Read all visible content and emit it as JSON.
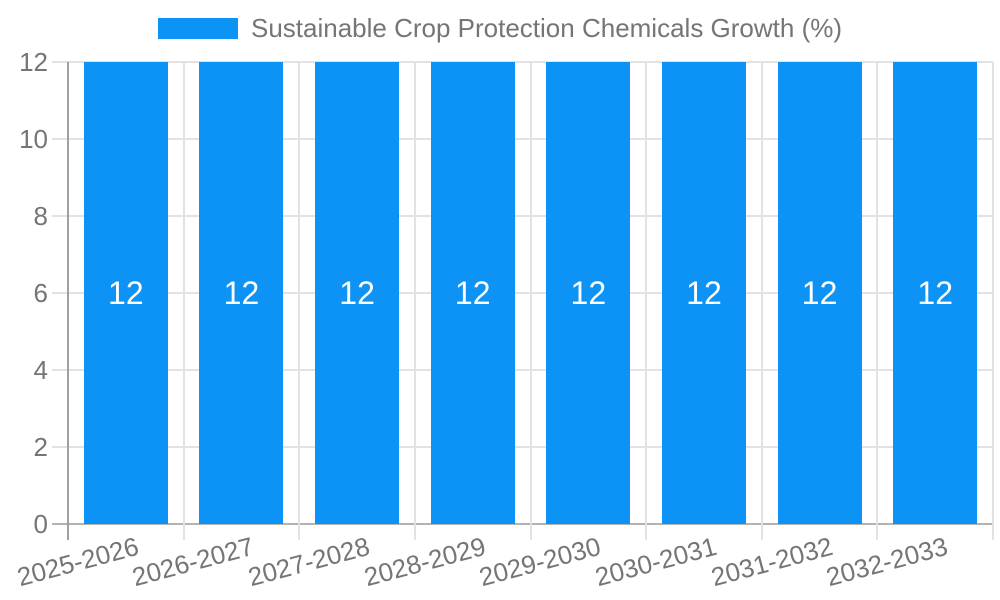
{
  "chart_data": {
    "type": "bar",
    "title": "Sustainable Crop Protection Chemicals Growth (%)",
    "categories": [
      "2025-2026",
      "2026-2027",
      "2027-2028",
      "2028-2029",
      "2029-2030",
      "2030-2031",
      "2031-2032",
      "2032-2033"
    ],
    "values": [
      12,
      12,
      12,
      12,
      12,
      12,
      12,
      12
    ],
    "bar_labels": [
      "12",
      "12",
      "12",
      "12",
      "12",
      "12",
      "12",
      "12"
    ],
    "xlabel": "",
    "ylabel": "",
    "ylim": [
      0,
      12
    ],
    "yticks": [
      0,
      2,
      4,
      6,
      8,
      10,
      12
    ],
    "ytick_labels": [
      "0",
      "2",
      "4",
      "6",
      "8",
      "10",
      "12"
    ],
    "grid": true,
    "legend_position": "top-center"
  },
  "colors": {
    "bar": "#0d93f5",
    "bar_label_text": "#ffffff",
    "axis_text": "#757575",
    "gridline": "#e2e2e2",
    "baseline": "#b3b3b3",
    "axis_line": "#a0a0a0",
    "background": "#ffffff"
  }
}
